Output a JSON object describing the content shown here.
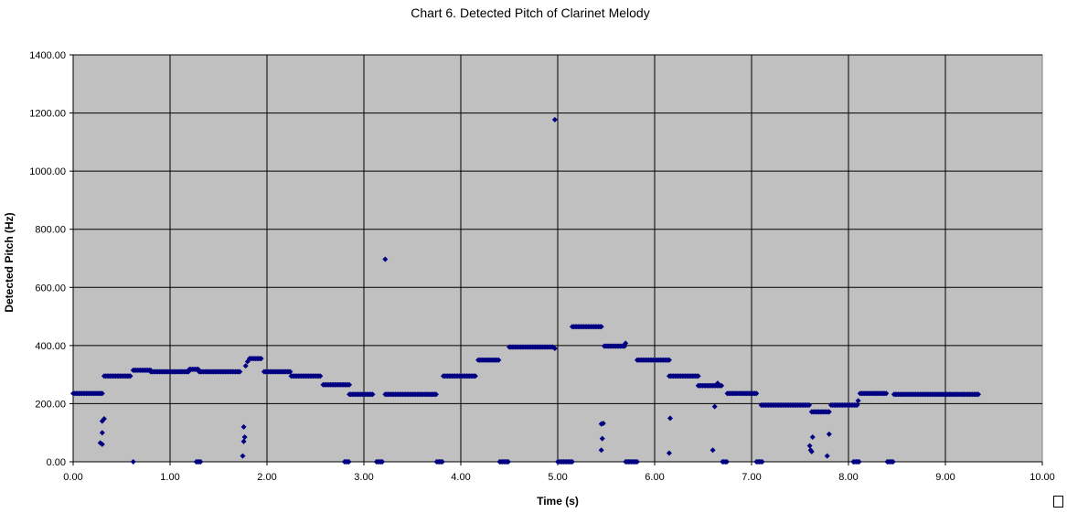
{
  "chart_data": {
    "type": "scatter",
    "title": "Chart 6. Detected Pitch of Clarinet Melody",
    "xlabel": "Time (s)",
    "ylabel": "Detected Pitch (Hz)",
    "xlim": [
      0,
      10
    ],
    "ylim": [
      0,
      1400
    ],
    "x_ticks": [
      "0.00",
      "1.00",
      "2.00",
      "3.00",
      "4.00",
      "5.00",
      "6.00",
      "7.00",
      "8.00",
      "9.00",
      "10.00"
    ],
    "y_ticks": [
      "0.00",
      "200.00",
      "400.00",
      "600.00",
      "800.00",
      "1000.00",
      "1200.00",
      "1400.00"
    ],
    "grid": true,
    "plot_background": "#c0c0c0",
    "marker_color": "#000080",
    "series": [
      {
        "segments": [
          {
            "x_start": 0.0,
            "x_end": 0.3,
            "y": 235
          },
          {
            "x_start": 0.32,
            "x_end": 0.6,
            "y": 295
          },
          {
            "x_start": 0.62,
            "x_end": 0.8,
            "y": 315
          },
          {
            "x_start": 0.8,
            "x_end": 1.2,
            "y": 310
          },
          {
            "x_start": 1.2,
            "x_end": 1.3,
            "y": 318
          },
          {
            "x_start": 1.3,
            "x_end": 1.72,
            "y": 310
          },
          {
            "x_start": 1.82,
            "x_end": 1.95,
            "y": 355
          },
          {
            "x_start": 1.97,
            "x_end": 2.25,
            "y": 310
          },
          {
            "x_start": 2.25,
            "x_end": 2.55,
            "y": 295
          },
          {
            "x_start": 2.58,
            "x_end": 2.85,
            "y": 265
          },
          {
            "x_start": 2.85,
            "x_end": 3.1,
            "y": 232
          },
          {
            "x_start": 3.22,
            "x_end": 3.75,
            "y": 232
          },
          {
            "x_start": 3.82,
            "x_end": 4.15,
            "y": 295
          },
          {
            "x_start": 4.18,
            "x_end": 4.4,
            "y": 350
          },
          {
            "x_start": 4.5,
            "x_end": 4.95,
            "y": 395
          },
          {
            "x_start": 5.15,
            "x_end": 5.45,
            "y": 465
          },
          {
            "x_start": 5.48,
            "x_end": 5.7,
            "y": 398
          },
          {
            "x_start": 5.82,
            "x_end": 6.15,
            "y": 350
          },
          {
            "x_start": 6.15,
            "x_end": 6.45,
            "y": 295
          },
          {
            "x_start": 6.45,
            "x_end": 6.7,
            "y": 262
          },
          {
            "x_start": 6.75,
            "x_end": 7.05,
            "y": 235
          },
          {
            "x_start": 7.1,
            "x_end": 7.6,
            "y": 195
          },
          {
            "x_start": 7.62,
            "x_end": 7.8,
            "y": 172
          },
          {
            "x_start": 7.82,
            "x_end": 8.1,
            "y": 195
          },
          {
            "x_start": 8.12,
            "x_end": 8.4,
            "y": 235
          },
          {
            "x_start": 8.47,
            "x_end": 9.35,
            "y": 232
          }
        ],
        "zero_segments": [
          {
            "x_start": 1.27,
            "x_end": 1.32
          },
          {
            "x_start": 2.8,
            "x_end": 2.85
          },
          {
            "x_start": 3.13,
            "x_end": 3.2
          },
          {
            "x_start": 3.75,
            "x_end": 3.82
          },
          {
            "x_start": 4.4,
            "x_end": 4.5
          },
          {
            "x_start": 5.0,
            "x_end": 5.15
          },
          {
            "x_start": 5.7,
            "x_end": 5.82
          },
          {
            "x_start": 6.7,
            "x_end": 6.75
          },
          {
            "x_start": 7.05,
            "x_end": 7.12
          },
          {
            "x_start": 8.05,
            "x_end": 8.12
          },
          {
            "x_start": 8.4,
            "x_end": 8.47
          }
        ],
        "points": [
          {
            "x": 0.28,
            "y": 65
          },
          {
            "x": 0.3,
            "y": 60
          },
          {
            "x": 0.3,
            "y": 100
          },
          {
            "x": 0.3,
            "y": 140
          },
          {
            "x": 0.32,
            "y": 148
          },
          {
            "x": 0.62,
            "y": 0
          },
          {
            "x": 1.75,
            "y": 20
          },
          {
            "x": 1.76,
            "y": 70
          },
          {
            "x": 1.77,
            "y": 85
          },
          {
            "x": 1.76,
            "y": 120
          },
          {
            "x": 1.78,
            "y": 330
          },
          {
            "x": 1.8,
            "y": 345
          },
          {
            "x": 3.22,
            "y": 697
          },
          {
            "x": 4.97,
            "y": 1177
          },
          {
            "x": 4.97,
            "y": 390
          },
          {
            "x": 5.45,
            "y": 40
          },
          {
            "x": 5.46,
            "y": 80
          },
          {
            "x": 5.45,
            "y": 130
          },
          {
            "x": 5.47,
            "y": 132
          },
          {
            "x": 5.7,
            "y": 408
          },
          {
            "x": 6.15,
            "y": 30
          },
          {
            "x": 6.16,
            "y": 150
          },
          {
            "x": 6.6,
            "y": 40
          },
          {
            "x": 6.62,
            "y": 190
          },
          {
            "x": 6.65,
            "y": 270
          },
          {
            "x": 7.6,
            "y": 55
          },
          {
            "x": 7.61,
            "y": 40
          },
          {
            "x": 7.62,
            "y": 35
          },
          {
            "x": 7.63,
            "y": 85
          },
          {
            "x": 7.78,
            "y": 20
          },
          {
            "x": 7.8,
            "y": 95
          },
          {
            "x": 8.1,
            "y": 210
          }
        ]
      }
    ]
  }
}
